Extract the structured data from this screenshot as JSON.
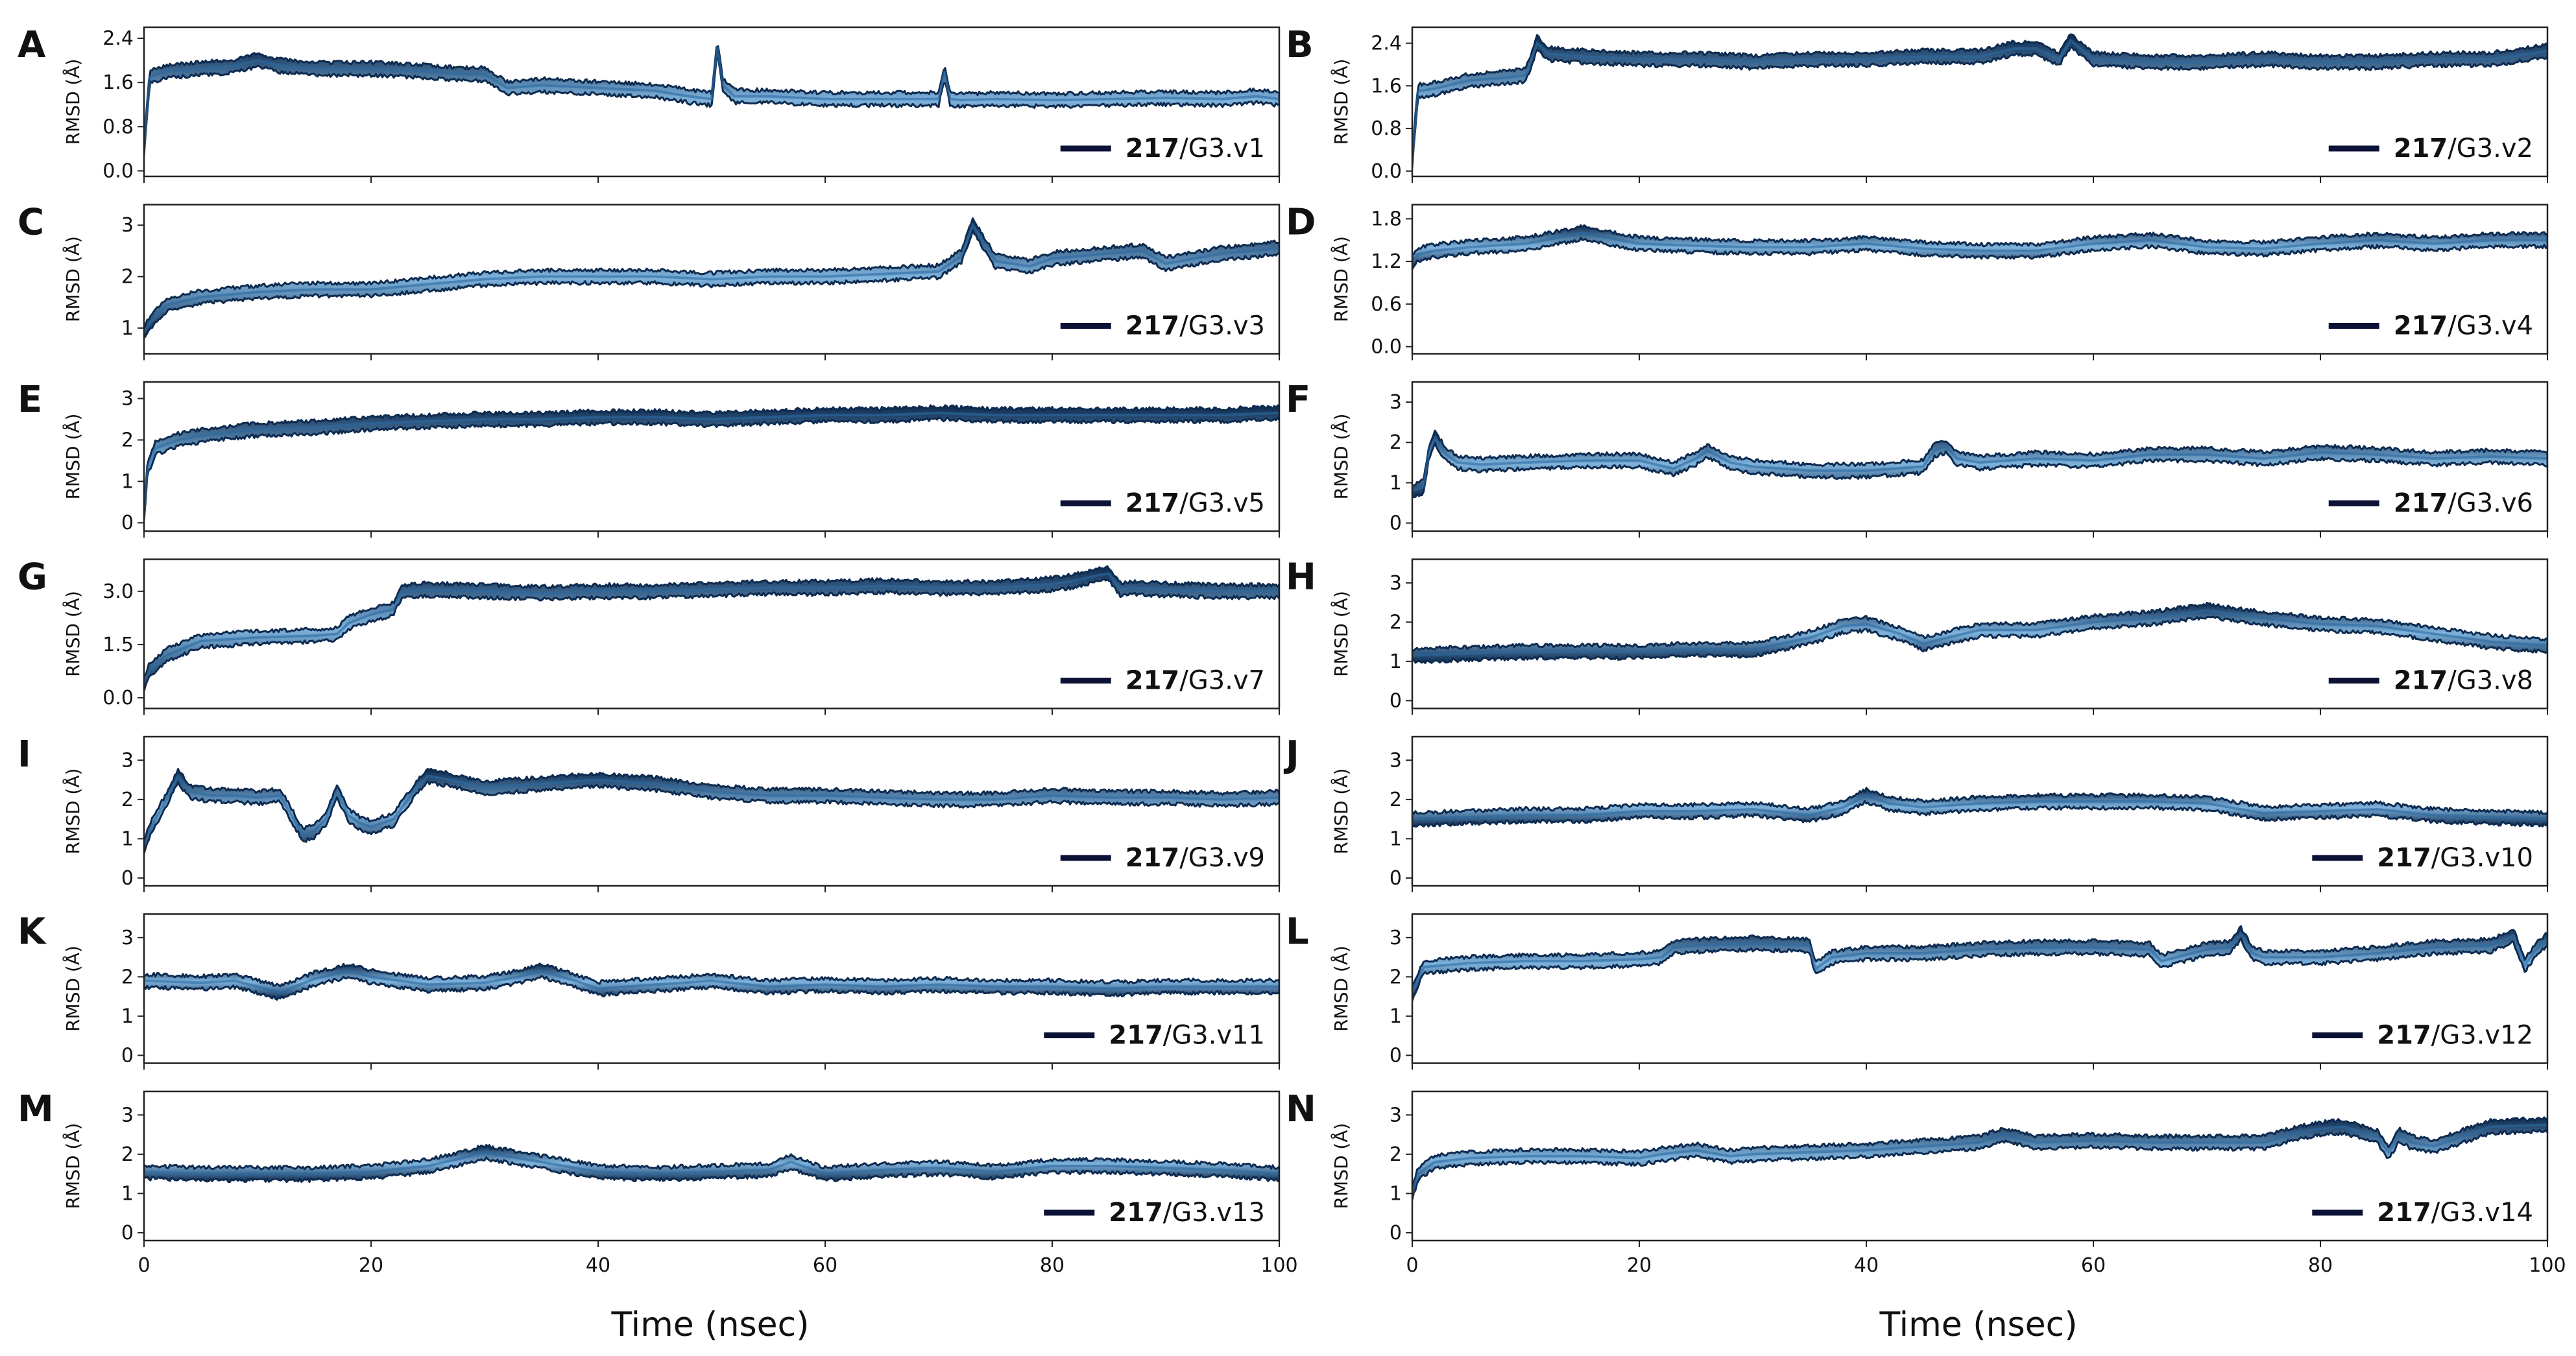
{
  "figure": {
    "x_axis_label": "Time (nsec)",
    "x_ticks": [
      "0",
      "20",
      "40",
      "60",
      "80",
      "100"
    ]
  },
  "colors": {
    "series": "#2a6aa3",
    "series_dark": "#0d2a4f",
    "series_light": "#7fb3dc",
    "legend_line": "#0c1236",
    "axis": "#222222",
    "text": "#111111"
  },
  "chart_data": [
    {
      "type": "line",
      "panel": "A",
      "compound": "217",
      "variant": "/G3.v1",
      "ylabel": "RMSD (Å)",
      "yticks": [
        "0.0",
        "0.8",
        "1.6",
        "2.4"
      ],
      "ylim": [
        -0.1,
        2.6
      ],
      "xlim": [
        0,
        100
      ],
      "series": [
        {
          "name": "217/G3.v1",
          "x": [
            0,
            0.5,
            2,
            5,
            8,
            10,
            12,
            15,
            20,
            25,
            28,
            30,
            32,
            35,
            40,
            45,
            48,
            50,
            50.5,
            51,
            52,
            55,
            60,
            65,
            70,
            70.5,
            71,
            72,
            75,
            80,
            85,
            90,
            95,
            98,
            100
          ],
          "y": [
            0.4,
            1.7,
            1.8,
            1.85,
            1.9,
            2.0,
            1.9,
            1.85,
            1.85,
            1.8,
            1.75,
            1.75,
            1.5,
            1.55,
            1.5,
            1.45,
            1.35,
            1.3,
            2.25,
            1.55,
            1.35,
            1.35,
            1.3,
            1.3,
            1.3,
            1.8,
            1.3,
            1.28,
            1.3,
            1.28,
            1.3,
            1.32,
            1.3,
            1.35,
            1.3
          ]
        }
      ]
    },
    {
      "type": "line",
      "panel": "B",
      "compound": "217",
      "variant": "/G3.v2",
      "ylabel": "RMSD (Å)",
      "yticks": [
        "0.0",
        "0.8",
        "1.6",
        "2.4"
      ],
      "ylim": [
        -0.1,
        2.7
      ],
      "xlim": [
        0,
        100
      ],
      "series": [
        {
          "name": "217/G3.v2",
          "x": [
            0,
            0.5,
            2,
            5,
            8,
            10,
            11,
            12,
            15,
            20,
            25,
            30,
            35,
            40,
            45,
            50,
            53,
            55,
            57,
            58,
            60,
            65,
            70,
            75,
            80,
            85,
            90,
            95,
            100
          ],
          "y": [
            0.2,
            1.5,
            1.55,
            1.7,
            1.75,
            1.8,
            2.4,
            2.2,
            2.15,
            2.1,
            2.1,
            2.05,
            2.1,
            2.1,
            2.15,
            2.15,
            2.3,
            2.3,
            2.1,
            2.45,
            2.1,
            2.05,
            2.05,
            2.1,
            2.05,
            2.05,
            2.1,
            2.1,
            2.25
          ]
        }
      ]
    },
    {
      "type": "line",
      "panel": "C",
      "compound": "217",
      "variant": "/G3.v3",
      "ylabel": "RMSD (Å)",
      "yticks": [
        "1",
        "2",
        "3"
      ],
      "ylim": [
        0.5,
        3.4
      ],
      "xlim": [
        0,
        100
      ],
      "series": [
        {
          "name": "217/G3.v3",
          "x": [
            0,
            0.5,
            2,
            5,
            10,
            15,
            20,
            25,
            30,
            35,
            40,
            45,
            50,
            55,
            60,
            65,
            70,
            72,
            73,
            75,
            78,
            80,
            85,
            88,
            90,
            95,
            100
          ],
          "y": [
            0.9,
            1.1,
            1.45,
            1.6,
            1.7,
            1.75,
            1.75,
            1.85,
            1.95,
            2.0,
            2.0,
            2.0,
            1.95,
            2.0,
            2.0,
            2.05,
            2.1,
            2.4,
            3.0,
            2.3,
            2.2,
            2.35,
            2.45,
            2.5,
            2.25,
            2.45,
            2.55
          ]
        }
      ]
    },
    {
      "type": "line",
      "panel": "D",
      "compound": "217",
      "variant": "/G3.v4",
      "ylabel": "RMSD (Å)",
      "yticks": [
        "0.0",
        "0.6",
        "1.2",
        "1.8"
      ],
      "ylim": [
        -0.1,
        2.0
      ],
      "xlim": [
        0,
        100
      ],
      "series": [
        {
          "name": "217/G3.v4",
          "x": [
            0,
            0.5,
            2,
            5,
            10,
            15,
            20,
            25,
            30,
            35,
            40,
            45,
            50,
            55,
            60,
            65,
            70,
            75,
            80,
            85,
            90,
            95,
            100
          ],
          "y": [
            1.2,
            1.3,
            1.35,
            1.4,
            1.45,
            1.6,
            1.45,
            1.42,
            1.4,
            1.4,
            1.45,
            1.38,
            1.35,
            1.35,
            1.45,
            1.5,
            1.4,
            1.38,
            1.45,
            1.5,
            1.45,
            1.5,
            1.5
          ]
        }
      ]
    },
    {
      "type": "line",
      "panel": "E",
      "compound": "217",
      "variant": "/G3.v5",
      "ylabel": "RMSD (Å)",
      "yticks": [
        "0",
        "1",
        "2",
        "3"
      ],
      "ylim": [
        -0.2,
        3.4
      ],
      "xlim": [
        0,
        100
      ],
      "series": [
        {
          "name": "217/G3.v5",
          "x": [
            0,
            0.3,
            1,
            3,
            5,
            8,
            10,
            15,
            20,
            25,
            30,
            35,
            40,
            45,
            50,
            55,
            60,
            65,
            70,
            75,
            80,
            85,
            90,
            95,
            100
          ],
          "y": [
            0.2,
            1.3,
            1.8,
            2.0,
            2.1,
            2.2,
            2.25,
            2.3,
            2.4,
            2.45,
            2.5,
            2.5,
            2.55,
            2.55,
            2.5,
            2.55,
            2.6,
            2.6,
            2.65,
            2.6,
            2.6,
            2.6,
            2.6,
            2.6,
            2.65
          ]
        }
      ]
    },
    {
      "type": "line",
      "panel": "F",
      "compound": "217",
      "variant": "/G3.v6",
      "ylabel": "RMSD (Å)",
      "yticks": [
        "0",
        "1",
        "2",
        "3"
      ],
      "ylim": [
        -0.2,
        3.5
      ],
      "xlim": [
        0,
        100
      ],
      "series": [
        {
          "name": "217/G3.v6",
          "x": [
            0,
            1,
            1.5,
            2,
            3,
            4,
            6,
            10,
            15,
            20,
            23,
            25,
            26,
            28,
            30,
            35,
            40,
            45,
            46,
            47,
            48,
            50,
            55,
            60,
            65,
            70,
            75,
            80,
            85,
            90,
            95,
            100
          ],
          "y": [
            0.8,
            0.9,
            1.8,
            2.1,
            1.7,
            1.5,
            1.45,
            1.5,
            1.55,
            1.55,
            1.35,
            1.6,
            1.8,
            1.5,
            1.4,
            1.3,
            1.3,
            1.4,
            1.8,
            1.9,
            1.6,
            1.5,
            1.6,
            1.55,
            1.7,
            1.7,
            1.6,
            1.75,
            1.7,
            1.6,
            1.65,
            1.6
          ]
        }
      ]
    },
    {
      "type": "line",
      "panel": "G",
      "compound": "217",
      "variant": "/G3.v7",
      "ylabel": "RMSD (Å)",
      "yticks": [
        "0.0",
        "1.5",
        "3.0"
      ],
      "ylim": [
        -0.3,
        3.9
      ],
      "xlim": [
        0,
        100
      ],
      "series": [
        {
          "name": "217/G3.v7",
          "x": [
            0,
            0.5,
            2,
            5,
            10,
            15,
            17,
            18,
            20,
            22,
            22.5,
            23,
            25,
            30,
            35,
            40,
            45,
            50,
            55,
            60,
            65,
            70,
            75,
            80,
            82,
            84,
            85,
            86,
            87,
            90,
            95,
            100
          ],
          "y": [
            0.4,
            0.8,
            1.2,
            1.6,
            1.7,
            1.75,
            1.8,
            2.1,
            2.35,
            2.5,
            2.9,
            3.0,
            3.05,
            3.0,
            2.95,
            3.0,
            3.0,
            3.05,
            3.1,
            3.1,
            3.15,
            3.1,
            3.1,
            3.2,
            3.3,
            3.45,
            3.5,
            3.05,
            3.1,
            3.05,
            3.0,
            3.0
          ]
        }
      ]
    },
    {
      "type": "line",
      "panel": "H",
      "compound": "217",
      "variant": "/G3.v8",
      "ylabel": "RMSD (Å)",
      "yticks": [
        "0",
        "1",
        "2",
        "3"
      ],
      "ylim": [
        -0.2,
        3.6
      ],
      "xlim": [
        0,
        100
      ],
      "series": [
        {
          "name": "217/G3.v8",
          "x": [
            0,
            5,
            10,
            15,
            20,
            25,
            30,
            35,
            38,
            40,
            43,
            45,
            50,
            55,
            60,
            65,
            70,
            75,
            80,
            85,
            90,
            95,
            100
          ],
          "y": [
            1.15,
            1.2,
            1.25,
            1.25,
            1.25,
            1.3,
            1.3,
            1.6,
            1.9,
            1.95,
            1.7,
            1.45,
            1.8,
            1.8,
            2.0,
            2.1,
            2.3,
            2.1,
            1.95,
            1.9,
            1.7,
            1.5,
            1.4
          ]
        }
      ]
    },
    {
      "type": "line",
      "panel": "I",
      "compound": "217",
      "variant": "/G3.v9",
      "ylabel": "RMSD (Å)",
      "yticks": [
        "0",
        "1",
        "2",
        "3"
      ],
      "ylim": [
        -0.2,
        3.6
      ],
      "xlim": [
        0,
        100
      ],
      "series": [
        {
          "name": "217/G3.v9",
          "x": [
            0,
            0.5,
            1,
            2,
            3,
            4,
            6,
            8,
            10,
            12,
            13,
            14,
            15,
            16,
            17,
            18,
            19,
            20,
            21,
            22,
            24,
            25,
            27,
            30,
            35,
            40,
            45,
            50,
            55,
            60,
            65,
            70,
            75,
            80,
            85,
            90,
            95,
            100
          ],
          "y": [
            0.8,
            1.2,
            1.5,
            2.0,
            2.6,
            2.2,
            2.1,
            2.1,
            2.05,
            2.1,
            1.6,
            1.1,
            1.2,
            1.5,
            2.2,
            1.6,
            1.4,
            1.3,
            1.4,
            1.5,
            2.3,
            2.6,
            2.5,
            2.3,
            2.4,
            2.5,
            2.4,
            2.2,
            2.1,
            2.1,
            2.05,
            2.0,
            2.0,
            2.1,
            2.05,
            2.05,
            2.0,
            2.05
          ]
        }
      ]
    },
    {
      "type": "line",
      "panel": "J",
      "compound": "217",
      "variant": "/G3.v10",
      "ylabel": "RMSD (Å)",
      "yticks": [
        "0",
        "1",
        "2",
        "3"
      ],
      "ylim": [
        -0.2,
        3.6
      ],
      "xlim": [
        0,
        100
      ],
      "series": [
        {
          "name": "217/G3.v10",
          "x": [
            0,
            5,
            10,
            15,
            20,
            25,
            30,
            35,
            38,
            40,
            42,
            45,
            50,
            55,
            60,
            65,
            70,
            75,
            80,
            85,
            90,
            95,
            100
          ],
          "y": [
            1.5,
            1.55,
            1.6,
            1.6,
            1.7,
            1.7,
            1.75,
            1.6,
            1.8,
            2.1,
            1.9,
            1.8,
            1.9,
            1.95,
            1.95,
            1.95,
            1.9,
            1.65,
            1.7,
            1.75,
            1.6,
            1.55,
            1.5
          ]
        }
      ]
    },
    {
      "type": "line",
      "panel": "K",
      "compound": "217",
      "variant": "/G3.v11",
      "ylabel": "RMSD (Å)",
      "yticks": [
        "0",
        "1",
        "2",
        "3"
      ],
      "ylim": [
        -0.2,
        3.6
      ],
      "xlim": [
        0,
        100
      ],
      "series": [
        {
          "name": "217/G3.v11",
          "x": [
            0,
            5,
            8,
            10,
            12,
            15,
            18,
            20,
            25,
            30,
            33,
            35,
            38,
            40,
            45,
            50,
            55,
            60,
            65,
            70,
            75,
            80,
            85,
            90,
            95,
            100
          ],
          "y": [
            1.9,
            1.85,
            1.9,
            1.75,
            1.6,
            1.95,
            2.15,
            2.0,
            1.8,
            1.85,
            2.0,
            2.15,
            1.9,
            1.7,
            1.8,
            1.9,
            1.75,
            1.8,
            1.75,
            1.8,
            1.75,
            1.75,
            1.7,
            1.75,
            1.75,
            1.75
          ]
        }
      ]
    },
    {
      "type": "line",
      "panel": "L",
      "compound": "217",
      "variant": "/G3.v12",
      "ylabel": "RMSD (Å)",
      "yticks": [
        "0",
        "1",
        "2",
        "3"
      ],
      "ylim": [
        -0.2,
        3.6
      ],
      "xlim": [
        0,
        100
      ],
      "series": [
        {
          "name": "217/G3.v12",
          "x": [
            0,
            1,
            5,
            10,
            15,
            20,
            22,
            23,
            25,
            30,
            35,
            35.5,
            36,
            37,
            40,
            45,
            50,
            55,
            60,
            65,
            66,
            70,
            72,
            73,
            74,
            75,
            80,
            85,
            90,
            95,
            97,
            98,
            99,
            100
          ],
          "y": [
            1.6,
            2.25,
            2.35,
            2.4,
            2.4,
            2.45,
            2.5,
            2.75,
            2.8,
            2.85,
            2.8,
            2.2,
            2.3,
            2.5,
            2.6,
            2.6,
            2.7,
            2.75,
            2.75,
            2.7,
            2.4,
            2.7,
            2.75,
            3.1,
            2.6,
            2.5,
            2.5,
            2.6,
            2.75,
            2.8,
            3.05,
            2.3,
            2.7,
            2.95
          ]
        }
      ]
    },
    {
      "type": "line",
      "panel": "M",
      "compound": "217",
      "variant": "/G3.v13",
      "ylabel": "RMSD (Å)",
      "yticks": [
        "0",
        "1",
        "2",
        "3"
      ],
      "ylim": [
        -0.2,
        3.6
      ],
      "xlim": [
        0,
        100
      ],
      "series": [
        {
          "name": "217/G3.v13",
          "x": [
            0,
            5,
            10,
            15,
            20,
            25,
            28,
            30,
            32,
            35,
            40,
            45,
            50,
            55,
            57,
            60,
            65,
            70,
            75,
            80,
            85,
            90,
            95,
            100
          ],
          "y": [
            1.55,
            1.5,
            1.5,
            1.5,
            1.55,
            1.7,
            1.9,
            2.05,
            1.95,
            1.8,
            1.55,
            1.5,
            1.55,
            1.6,
            1.8,
            1.5,
            1.6,
            1.65,
            1.55,
            1.7,
            1.7,
            1.65,
            1.6,
            1.5
          ]
        }
      ]
    },
    {
      "type": "line",
      "panel": "N",
      "compound": "217",
      "variant": "/G3.v14",
      "ylabel": "RMSD (Å)",
      "yticks": [
        "0",
        "1",
        "2",
        "3"
      ],
      "ylim": [
        -0.2,
        3.6
      ],
      "xlim": [
        0,
        100
      ],
      "series": [
        {
          "name": "217/G3.v14",
          "x": [
            0,
            0.5,
            2,
            5,
            10,
            15,
            20,
            22,
            25,
            28,
            30,
            35,
            40,
            45,
            50,
            52,
            55,
            60,
            65,
            70,
            75,
            78,
            80,
            82,
            85,
            86,
            87,
            88,
            90,
            95,
            100
          ],
          "y": [
            1.0,
            1.5,
            1.8,
            1.9,
            1.95,
            1.95,
            1.9,
            2.0,
            2.1,
            1.95,
            2.0,
            2.05,
            2.1,
            2.2,
            2.3,
            2.5,
            2.3,
            2.35,
            2.3,
            2.3,
            2.3,
            2.55,
            2.65,
            2.7,
            2.45,
            2.05,
            2.5,
            2.3,
            2.2,
            2.7,
            2.75
          ]
        }
      ]
    }
  ]
}
